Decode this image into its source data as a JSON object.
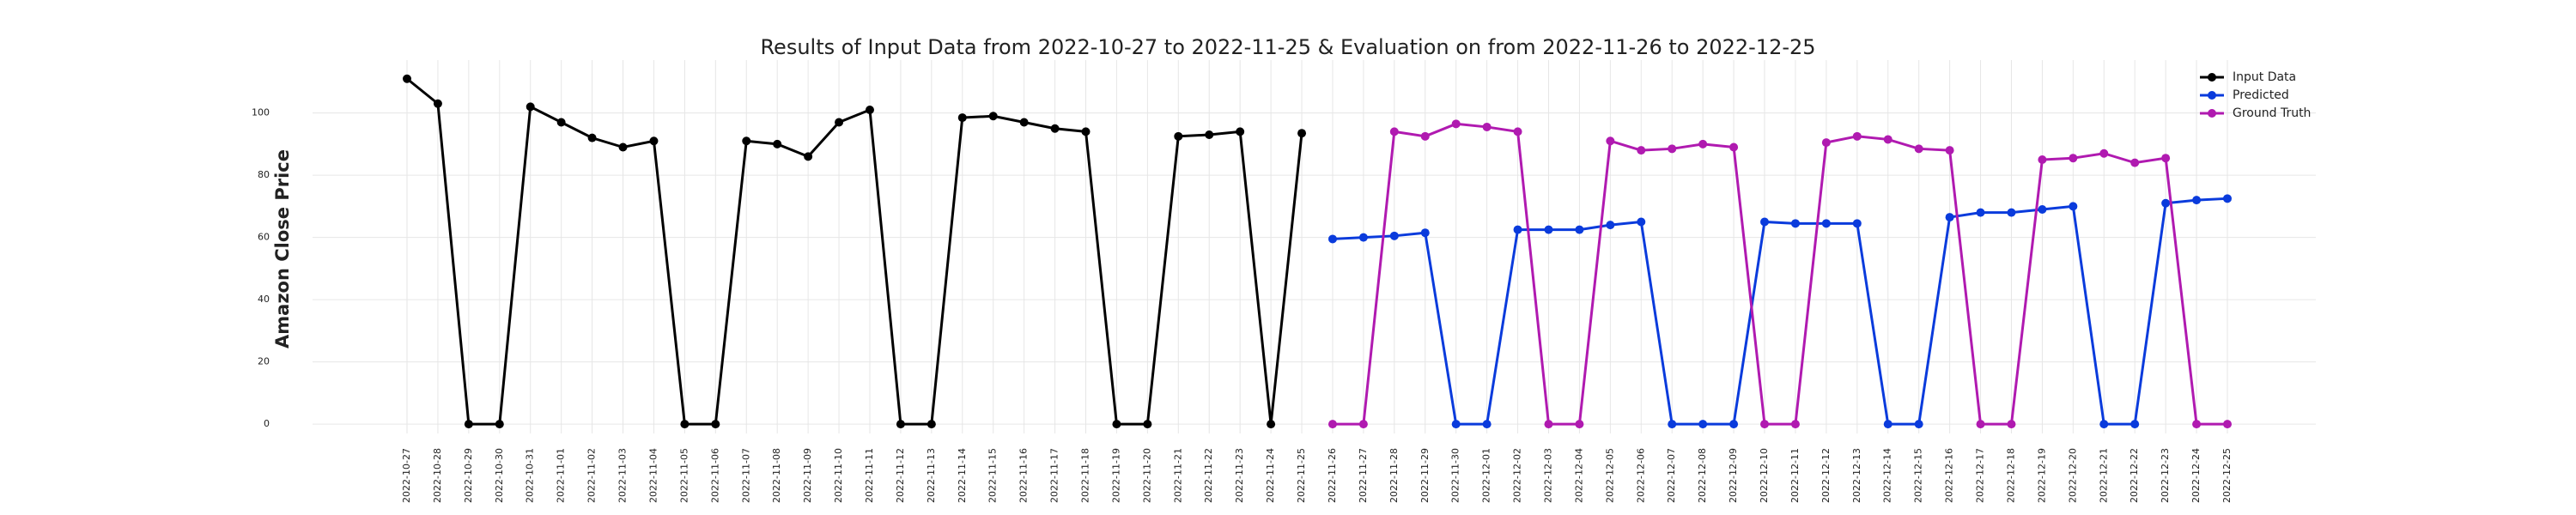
{
  "chart_data": {
    "type": "line",
    "title": "Results of Input Data from 2022-10-27 to 2022-11-25 & Evaluation on from 2022-11-26 to 2022-12-25",
    "y_label": "Amazon Close Price",
    "categories": [
      "2022-10-27",
      "2022-10-28",
      "2022-10-29",
      "2022-10-30",
      "2022-10-31",
      "2022-11-01",
      "2022-11-02",
      "2022-11-03",
      "2022-11-04",
      "2022-11-05",
      "2022-11-06",
      "2022-11-07",
      "2022-11-08",
      "2022-11-09",
      "2022-11-10",
      "2022-11-11",
      "2022-11-12",
      "2022-11-13",
      "2022-11-14",
      "2022-11-15",
      "2022-11-16",
      "2022-11-17",
      "2022-11-18",
      "2022-11-19",
      "2022-11-20",
      "2022-11-21",
      "2022-11-22",
      "2022-11-23",
      "2022-11-24",
      "2022-11-25",
      "2022-11-26",
      "2022-11-27",
      "2022-11-28",
      "2022-11-29",
      "2022-11-30",
      "2022-12-01",
      "2022-12-02",
      "2022-12-03",
      "2022-12-04",
      "2022-12-05",
      "2022-12-06",
      "2022-12-07",
      "2022-12-08",
      "2022-12-09",
      "2022-12-10",
      "2022-12-11",
      "2022-12-12",
      "2022-12-13",
      "2022-12-14",
      "2022-12-15",
      "2022-12-16",
      "2022-12-17",
      "2022-12-18",
      "2022-12-19",
      "2022-12-20",
      "2022-12-21",
      "2022-12-22",
      "2022-12-23",
      "2022-12-24",
      "2022-12-25"
    ],
    "series": [
      {
        "name": "Input Data",
        "color": "#000000",
        "values": [
          111,
          103,
          0,
          0,
          102,
          97,
          92,
          89,
          91,
          0,
          0,
          91,
          90,
          86,
          97,
          101,
          0,
          0,
          98.5,
          99,
          97,
          95,
          94,
          0,
          0,
          92.5,
          93,
          94,
          0,
          93.5,
          null,
          null,
          null,
          null,
          null,
          null,
          null,
          null,
          null,
          null,
          null,
          null,
          null,
          null,
          null,
          null,
          null,
          null,
          null,
          null,
          null,
          null,
          null,
          null,
          null,
          null,
          null,
          null,
          null,
          null
        ]
      },
      {
        "name": "Predicted",
        "color": "#0a3bdc",
        "values": [
          null,
          null,
          null,
          null,
          null,
          null,
          null,
          null,
          null,
          null,
          null,
          null,
          null,
          null,
          null,
          null,
          null,
          null,
          null,
          null,
          null,
          null,
          null,
          null,
          null,
          null,
          null,
          null,
          null,
          null,
          59.5,
          60,
          60.5,
          61.5,
          0,
          0,
          62.5,
          62.5,
          62.5,
          64,
          65,
          0,
          0,
          0,
          65,
          64.5,
          64.5,
          64.5,
          0,
          0,
          66.5,
          68,
          68,
          69,
          70,
          0,
          0,
          71,
          72,
          72.5
        ]
      },
      {
        "name": "Ground Truth",
        "color": "#b01ab0",
        "values": [
          null,
          null,
          null,
          null,
          null,
          null,
          null,
          null,
          null,
          null,
          null,
          null,
          null,
          null,
          null,
          null,
          null,
          null,
          null,
          null,
          null,
          null,
          null,
          null,
          null,
          null,
          null,
          null,
          null,
          null,
          0,
          0,
          94,
          92.5,
          96.5,
          95.5,
          94,
          0,
          0,
          91,
          88,
          88.5,
          90,
          89,
          0,
          0,
          90.5,
          92.5,
          91.5,
          88.5,
          88,
          0,
          0,
          85,
          85.5,
          87,
          84,
          85.5,
          0,
          0
        ]
      }
    ],
    "ylim": [
      -3,
      117
    ],
    "yticks": [
      0,
      20,
      40,
      60,
      80,
      100
    ],
    "grid": true,
    "legend": "upper right"
  }
}
